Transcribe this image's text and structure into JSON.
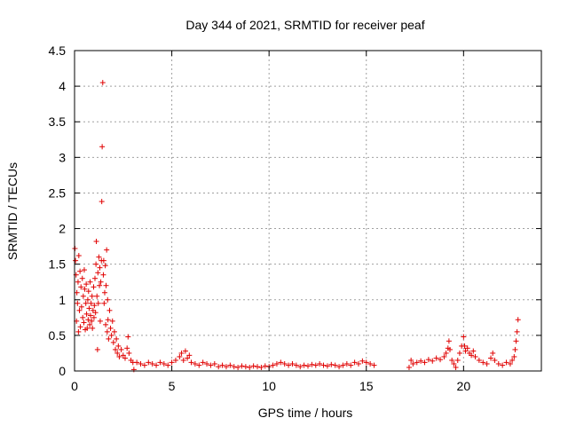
{
  "chart_data": {
    "type": "scatter",
    "title": "Day 344 of 2021, SRMTID for receiver peaf",
    "xlabel": "GPS time / hours",
    "ylabel": "SRMTID / TECUs",
    "xlim": [
      0,
      24
    ],
    "ylim": [
      0,
      4.5
    ],
    "xticks": [
      0,
      5,
      10,
      15,
      20
    ],
    "yticks": [
      0,
      0.5,
      1,
      1.5,
      2,
      2.5,
      3,
      3.5,
      4,
      4.5
    ],
    "xtick_labels": [
      "0",
      "5",
      "10",
      "15",
      "20"
    ],
    "ytick_labels": [
      "0",
      "0.5",
      "1",
      "1.5",
      "2",
      "2.5",
      "3",
      "3.5",
      "4",
      "4.5"
    ],
    "grid": true,
    "marker": "+",
    "marker_color": "#e00000",
    "series": [
      {
        "name": "SRMTID",
        "points": [
          [
            0.02,
            1.72
          ],
          [
            0.05,
            1.55
          ],
          [
            0.08,
            1.35
          ],
          [
            0.1,
            0.7
          ],
          [
            0.12,
            1.1
          ],
          [
            0.15,
            0.95
          ],
          [
            0.18,
            1.25
          ],
          [
            0.2,
            0.55
          ],
          [
            0.22,
            1.62
          ],
          [
            0.25,
            0.85
          ],
          [
            0.28,
            1.4
          ],
          [
            0.3,
            0.62
          ],
          [
            0.33,
            1.18
          ],
          [
            0.36,
            0.9
          ],
          [
            0.4,
            1.3
          ],
          [
            0.42,
            0.75
          ],
          [
            0.45,
            1.05
          ],
          [
            0.48,
            0.68
          ],
          [
            0.5,
            1.42
          ],
          [
            0.52,
            1.15
          ],
          [
            0.55,
            0.58
          ],
          [
            0.58,
            0.95
          ],
          [
            0.6,
            1.22
          ],
          [
            0.62,
            0.8
          ],
          [
            0.65,
            0.6
          ],
          [
            0.68,
            1.0
          ],
          [
            0.7,
            0.72
          ],
          [
            0.72,
            1.12
          ],
          [
            0.75,
            0.88
          ],
          [
            0.78,
            0.65
          ],
          [
            0.8,
            1.25
          ],
          [
            0.82,
            0.78
          ],
          [
            0.85,
            0.95
          ],
          [
            0.88,
            0.7
          ],
          [
            0.9,
            1.05
          ],
          [
            0.92,
            0.6
          ],
          [
            0.95,
            0.85
          ],
          [
            0.98,
            1.18
          ],
          [
            1.0,
            0.75
          ],
          [
            1.02,
            0.92
          ],
          [
            1.05,
            1.3
          ],
          [
            1.08,
            0.82
          ],
          [
            1.1,
            1.5
          ],
          [
            1.12,
            1.82
          ],
          [
            1.15,
            1.05
          ],
          [
            1.18,
            0.3
          ],
          [
            1.2,
            1.38
          ],
          [
            1.22,
            0.95
          ],
          [
            1.25,
            1.6
          ],
          [
            1.28,
            1.2
          ],
          [
            1.3,
            1.45
          ],
          [
            1.32,
            0.7
          ],
          [
            1.35,
            1.25
          ],
          [
            1.38,
            1.55
          ],
          [
            1.4,
            2.38
          ],
          [
            1.42,
            3.15
          ],
          [
            1.45,
            4.05
          ],
          [
            1.48,
            1.35
          ],
          [
            1.5,
            1.55
          ],
          [
            1.52,
            0.95
          ],
          [
            1.55,
            1.1
          ],
          [
            1.58,
            1.48
          ],
          [
            1.6,
            0.65
          ],
          [
            1.62,
            1.2
          ],
          [
            1.65,
            1.7
          ],
          [
            1.68,
            0.55
          ],
          [
            1.7,
            1.0
          ],
          [
            1.72,
            0.72
          ],
          [
            1.75,
            0.45
          ],
          [
            1.8,
            0.85
          ],
          [
            1.85,
            0.6
          ],
          [
            1.9,
            0.5
          ],
          [
            1.95,
            0.7
          ],
          [
            2.0,
            0.4
          ],
          [
            2.05,
            0.55
          ],
          [
            2.1,
            0.3
          ],
          [
            2.15,
            0.45
          ],
          [
            2.2,
            0.25
          ],
          [
            2.25,
            0.35
          ],
          [
            2.3,
            0.2
          ],
          [
            2.4,
            0.3
          ],
          [
            2.5,
            0.22
          ],
          [
            2.6,
            0.18
          ],
          [
            2.7,
            0.32
          ],
          [
            2.75,
            0.48
          ],
          [
            2.8,
            0.25
          ],
          [
            2.9,
            0.15
          ],
          [
            3.0,
            0.12
          ],
          [
            3.05,
            0.02
          ],
          [
            3.2,
            0.12
          ],
          [
            3.4,
            0.1
          ],
          [
            3.6,
            0.08
          ],
          [
            3.8,
            0.12
          ],
          [
            4.0,
            0.1
          ],
          [
            4.2,
            0.08
          ],
          [
            4.4,
            0.12
          ],
          [
            4.6,
            0.1
          ],
          [
            4.8,
            0.08
          ],
          [
            5.0,
            0.12
          ],
          [
            5.2,
            0.15
          ],
          [
            5.4,
            0.2
          ],
          [
            5.5,
            0.25
          ],
          [
            5.6,
            0.15
          ],
          [
            5.7,
            0.28
          ],
          [
            5.8,
            0.18
          ],
          [
            5.9,
            0.22
          ],
          [
            6.0,
            0.12
          ],
          [
            6.2,
            0.1
          ],
          [
            6.4,
            0.08
          ],
          [
            6.6,
            0.12
          ],
          [
            6.8,
            0.1
          ],
          [
            7.0,
            0.08
          ],
          [
            7.2,
            0.1
          ],
          [
            7.4,
            0.06
          ],
          [
            7.6,
            0.08
          ],
          [
            7.8,
            0.06
          ],
          [
            8.0,
            0.08
          ],
          [
            8.2,
            0.06
          ],
          [
            8.4,
            0.05
          ],
          [
            8.6,
            0.07
          ],
          [
            8.8,
            0.06
          ],
          [
            9.0,
            0.05
          ],
          [
            9.2,
            0.07
          ],
          [
            9.4,
            0.06
          ],
          [
            9.6,
            0.05
          ],
          [
            9.8,
            0.07
          ],
          [
            10.0,
            0.06
          ],
          [
            10.2,
            0.08
          ],
          [
            10.4,
            0.1
          ],
          [
            10.6,
            0.12
          ],
          [
            10.8,
            0.1
          ],
          [
            11.0,
            0.08
          ],
          [
            11.2,
            0.1
          ],
          [
            11.4,
            0.08
          ],
          [
            11.6,
            0.06
          ],
          [
            11.8,
            0.08
          ],
          [
            12.0,
            0.07
          ],
          [
            12.2,
            0.09
          ],
          [
            12.4,
            0.08
          ],
          [
            12.6,
            0.1
          ],
          [
            12.8,
            0.08
          ],
          [
            13.0,
            0.07
          ],
          [
            13.2,
            0.09
          ],
          [
            13.4,
            0.08
          ],
          [
            13.6,
            0.06
          ],
          [
            13.8,
            0.08
          ],
          [
            14.0,
            0.1
          ],
          [
            14.2,
            0.08
          ],
          [
            14.4,
            0.12
          ],
          [
            14.6,
            0.1
          ],
          [
            14.8,
            0.14
          ],
          [
            15.0,
            0.12
          ],
          [
            15.2,
            0.1
          ],
          [
            15.4,
            0.08
          ],
          [
            17.2,
            0.05
          ],
          [
            17.3,
            0.15
          ],
          [
            17.4,
            0.1
          ],
          [
            17.6,
            0.12
          ],
          [
            17.8,
            0.14
          ],
          [
            18.0,
            0.12
          ],
          [
            18.2,
            0.16
          ],
          [
            18.4,
            0.14
          ],
          [
            18.6,
            0.18
          ],
          [
            18.8,
            0.16
          ],
          [
            19.0,
            0.2
          ],
          [
            19.1,
            0.25
          ],
          [
            19.2,
            0.32
          ],
          [
            19.25,
            0.42
          ],
          [
            19.3,
            0.3
          ],
          [
            19.4,
            0.15
          ],
          [
            19.5,
            0.1
          ],
          [
            19.6,
            0.05
          ],
          [
            19.7,
            0.15
          ],
          [
            19.8,
            0.25
          ],
          [
            19.9,
            0.35
          ],
          [
            20.0,
            0.48
          ],
          [
            20.05,
            0.35
          ],
          [
            20.1,
            0.28
          ],
          [
            20.2,
            0.32
          ],
          [
            20.3,
            0.25
          ],
          [
            20.4,
            0.22
          ],
          [
            20.5,
            0.28
          ],
          [
            20.6,
            0.2
          ],
          [
            20.8,
            0.15
          ],
          [
            21.0,
            0.12
          ],
          [
            21.2,
            0.1
          ],
          [
            21.4,
            0.18
          ],
          [
            21.5,
            0.25
          ],
          [
            21.6,
            0.15
          ],
          [
            21.8,
            0.1
          ],
          [
            22.0,
            0.08
          ],
          [
            22.2,
            0.12
          ],
          [
            22.4,
            0.1
          ],
          [
            22.5,
            0.15
          ],
          [
            22.6,
            0.2
          ],
          [
            22.65,
            0.3
          ],
          [
            22.7,
            0.42
          ],
          [
            22.75,
            0.55
          ],
          [
            22.8,
            0.72
          ]
        ]
      }
    ]
  }
}
